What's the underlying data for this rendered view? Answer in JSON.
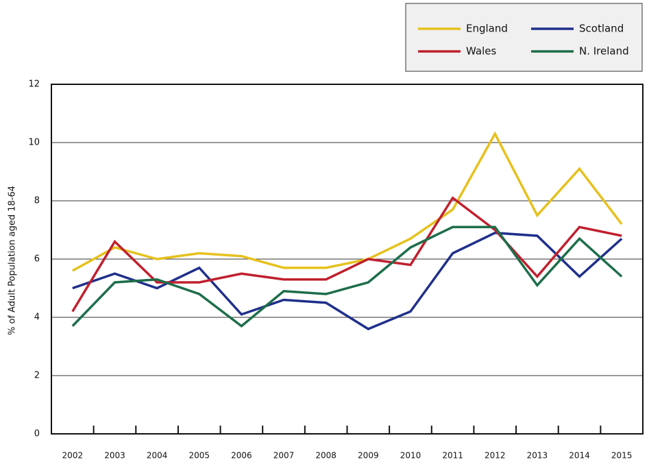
{
  "chart_data": {
    "type": "line",
    "y_label": "% of Adult Population aged 18-64",
    "categories": [
      "2002",
      "2003",
      "2004",
      "2005",
      "2006",
      "2007",
      "2008",
      "2009",
      "2010",
      "2011",
      "2012",
      "2013",
      "2014",
      "2015"
    ],
    "series": [
      {
        "name": "England",
        "color": "#e6c11d",
        "values": [
          5.6,
          6.4,
          6.0,
          6.2,
          6.1,
          5.7,
          5.7,
          6.0,
          6.7,
          7.7,
          10.3,
          7.5,
          9.1,
          7.2
        ]
      },
      {
        "name": "Scotland",
        "color": "#1f2f8a",
        "values": [
          5.0,
          5.5,
          5.0,
          5.7,
          4.1,
          4.6,
          4.5,
          3.6,
          4.2,
          6.2,
          6.9,
          6.8,
          5.4,
          6.7
        ]
      },
      {
        "name": "Wales",
        "color": "#c0202e",
        "values": [
          4.2,
          6.6,
          5.2,
          5.2,
          5.5,
          5.3,
          5.3,
          6.0,
          5.8,
          8.1,
          7.0,
          5.4,
          7.1,
          6.8
        ]
      },
      {
        "name": "N. Ireland",
        "color": "#1d6e4a",
        "values": [
          3.7,
          5.2,
          5.3,
          4.8,
          3.7,
          4.9,
          4.8,
          5.2,
          6.4,
          7.1,
          7.1,
          5.1,
          6.7,
          5.4
        ]
      }
    ],
    "ylim": [
      0,
      12
    ],
    "yticks": [
      0,
      2,
      4,
      6,
      8,
      10,
      12
    ],
    "grid": true
  }
}
